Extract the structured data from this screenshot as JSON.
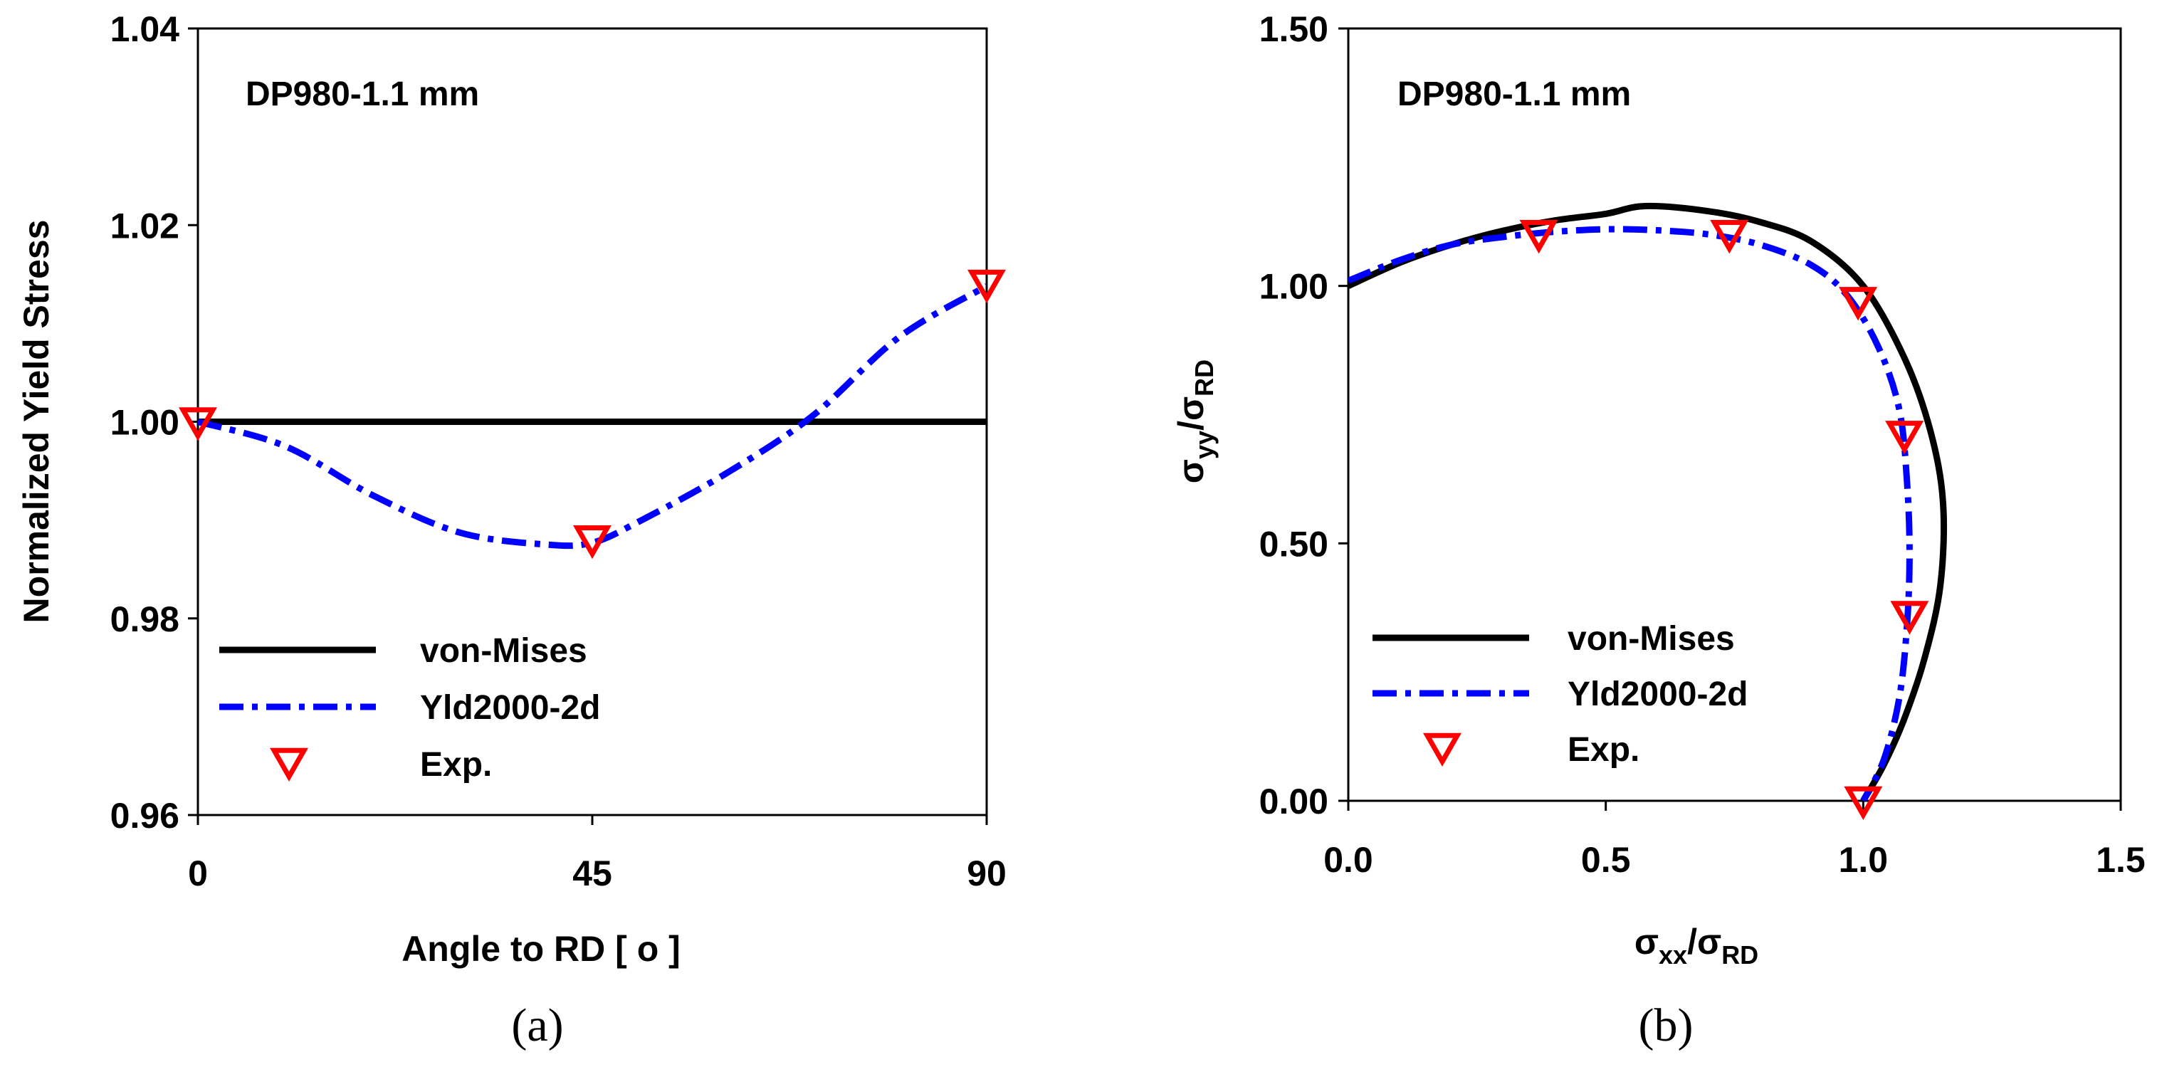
{
  "chart_data": [
    {
      "type": "line",
      "panel_label": "(a)",
      "annotation": "DP980-1.1 mm",
      "xlabel": "Angle to RD [ o  ]",
      "ylabel": "Normalized Yield Stress",
      "xlim": [
        0,
        90
      ],
      "ylim": [
        0.96,
        1.04
      ],
      "xticks": [
        0,
        45,
        90
      ],
      "xtick_labels": [
        "0",
        "45",
        "90"
      ],
      "yticks": [
        0.96,
        0.98,
        1.0,
        1.02,
        1.04
      ],
      "ytick_labels": [
        "0.96",
        "0.98",
        "1.00",
        "1.02",
        "1.04"
      ],
      "legend": [
        "von-Mises",
        "Yld2000-2d",
        "Exp."
      ],
      "legend_position": "bottom-left",
      "series": [
        {
          "name": "von-Mises",
          "style": "solid",
          "color": "#000000",
          "x": [
            0,
            90
          ],
          "y": [
            1.0,
            1.0
          ]
        },
        {
          "name": "Yld2000-2d",
          "style": "dash-dot",
          "color": "#0000ff",
          "x": [
            0,
            10,
            20,
            30,
            40,
            45,
            50,
            60,
            70,
            80,
            90
          ],
          "y": [
            1.0,
            0.9975,
            0.9925,
            0.9887,
            0.9875,
            0.9877,
            0.9897,
            0.9946,
            1.0005,
            1.0086,
            1.0138
          ]
        },
        {
          "name": "Exp.",
          "style": "marker",
          "color": "#ff0000",
          "x": [
            0,
            45,
            90
          ],
          "y": [
            1.0,
            0.988,
            1.014
          ]
        }
      ]
    },
    {
      "type": "line",
      "panel_label": "(b)",
      "annotation": "DP980-1.1 mm",
      "xlabel": "σxx/σRD",
      "xlabel_parts": [
        "σ",
        "xx",
        "/σ",
        "RD"
      ],
      "ylabel": "σyy/σRD",
      "ylabel_parts": [
        "σ",
        "yy",
        "/σ",
        "RD"
      ],
      "xlim": [
        0,
        1.5
      ],
      "ylim": [
        0,
        1.5
      ],
      "xticks": [
        0,
        0.5,
        1.0,
        1.5
      ],
      "xtick_labels": [
        "0.0",
        "0.5",
        "1.0",
        "1.5"
      ],
      "yticks": [
        0,
        0.5,
        1.0,
        1.5
      ],
      "ytick_labels": [
        "0.00",
        "0.50",
        "1.00",
        "1.50"
      ],
      "legend": [
        "von-Mises",
        "Yld2000-2d",
        "Exp."
      ],
      "legend_position": "bottom-left",
      "series": [
        {
          "name": "von-Mises",
          "style": "solid",
          "color": "#000000",
          "x": [
            0.0,
            0.1,
            0.2,
            0.3,
            0.4,
            0.5,
            0.577,
            0.7,
            0.8,
            0.9,
            1.0,
            1.08,
            1.13,
            1.155,
            1.15,
            1.12,
            1.08,
            1.04,
            1.0
          ],
          "y": [
            1.0,
            1.045,
            1.08,
            1.107,
            1.127,
            1.14,
            1.155,
            1.145,
            1.124,
            1.086,
            1.0,
            0.86,
            0.72,
            0.58,
            0.42,
            0.28,
            0.16,
            0.07,
            0.0
          ]
        },
        {
          "name": "Yld2000-2d",
          "style": "dash-dot",
          "color": "#0000ff",
          "x": [
            0.0,
            0.1,
            0.2,
            0.3,
            0.4,
            0.5,
            0.6,
            0.7,
            0.8,
            0.9,
            0.97,
            1.03,
            1.07,
            1.085,
            1.09,
            1.085,
            1.07,
            1.04,
            1.0
          ],
          "y": [
            1.01,
            1.05,
            1.08,
            1.095,
            1.105,
            1.11,
            1.108,
            1.1,
            1.08,
            1.04,
            0.98,
            0.88,
            0.76,
            0.62,
            0.48,
            0.34,
            0.2,
            0.08,
            0.0
          ]
        },
        {
          "name": "Exp.",
          "style": "marker",
          "color": "#ff0000",
          "x": [
            0.37,
            0.74,
            0.99,
            1.08,
            1.09,
            1.0
          ],
          "y": [
            1.1,
            1.1,
            0.97,
            0.71,
            0.36,
            0.0
          ]
        }
      ]
    }
  ]
}
